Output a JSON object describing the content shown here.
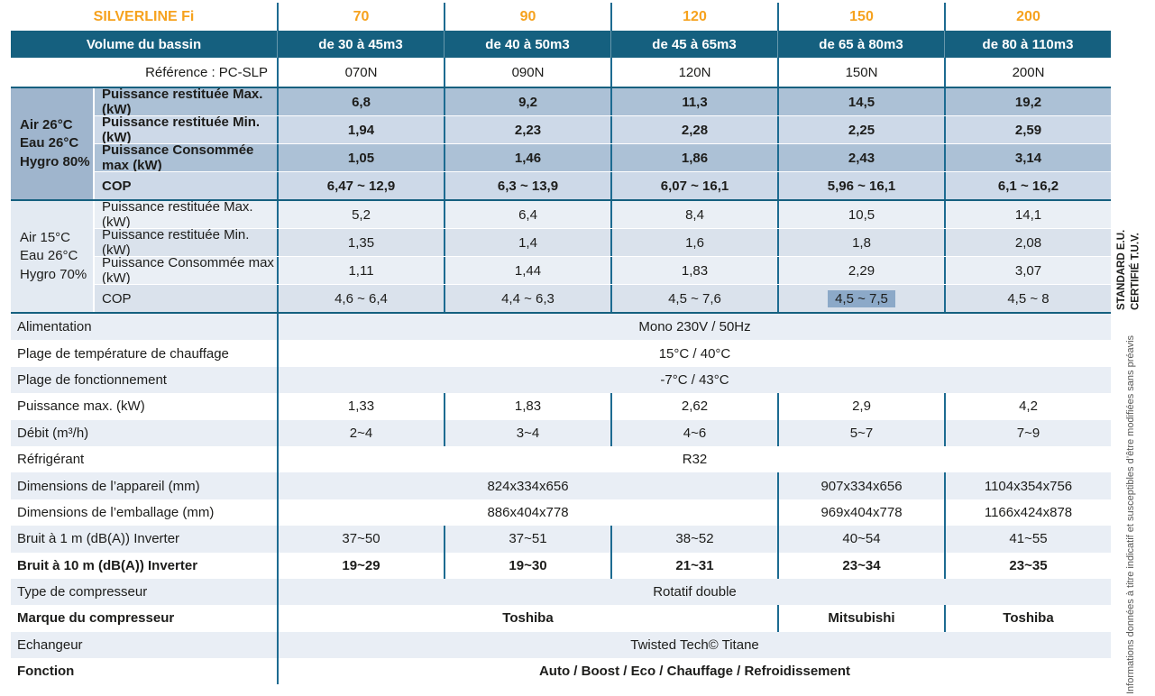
{
  "colors": {
    "band_blue": "#15607F",
    "accent_orange": "#F6A21E",
    "divider_teal": "#1d6b91",
    "air26_group_bg": "#9FB5CD",
    "air26_row_a": "#ACC1D6",
    "air26_row_b": "#CDD9E8",
    "air15_group_bg": "#E3EAF2",
    "air15_row_a": "#EAEFF5",
    "air15_row_b": "#DAE2EC",
    "zebra_blue": "#E9EEF5",
    "selection_highlight": "#8CA9C8"
  },
  "header": {
    "title": "SILVERLINE Fi",
    "models": [
      "70",
      "90",
      "120",
      "150",
      "200"
    ]
  },
  "volume_row": {
    "label": "Volume du bassin",
    "values": [
      "de 30 à 45m3",
      "de 40 à 50m3",
      "de 45 à 65m3",
      "de 65 à 80m3",
      "de 80 à 110m3"
    ]
  },
  "reference_row": {
    "label": "Référence : PC-SLP",
    "values": [
      "070N",
      "090N",
      "120N",
      "150N",
      "200N"
    ]
  },
  "performance_sections": [
    {
      "id": "air26",
      "condition_lines": [
        "Air 26°C",
        "Eau 26°C",
        "Hygro 80%"
      ],
      "rows": [
        {
          "label": "Puissance restituée Max. (kW)",
          "values": [
            "6,8",
            "9,2",
            "11,3",
            "14,5",
            "19,2"
          ]
        },
        {
          "label": "Puissance restituée Min. (kW)",
          "values": [
            "1,94",
            "2,23",
            "2,28",
            "2,25",
            "2,59"
          ]
        },
        {
          "label": "Puissance Consommée max (kW)",
          "values": [
            "1,05",
            "1,46",
            "1,86",
            "2,43",
            "3,14"
          ]
        },
        {
          "label": "COP",
          "values": [
            "6,47 ~ 12,9",
            "6,3 ~ 13,9",
            "6,07 ~ 16,1",
            "5,96 ~ 16,1",
            "6,1 ~ 16,2"
          ]
        }
      ]
    },
    {
      "id": "air15",
      "condition_lines": [
        "Air 15°C",
        "Eau 26°C",
        "Hygro 70%"
      ],
      "rows": [
        {
          "label": "Puissance restituée Max. (kW)",
          "values": [
            "5,2",
            "6,4",
            "8,4",
            "10,5",
            "14,1"
          ]
        },
        {
          "label": "Puissance restituée Min. (kW)",
          "values": [
            "1,35",
            "1,4",
            "1,6",
            "1,8",
            "2,08"
          ]
        },
        {
          "label": "Puissance Consommée max (kW)",
          "values": [
            "1,11",
            "1,44",
            "1,83",
            "2,29",
            "3,07"
          ]
        },
        {
          "label": "COP",
          "values": [
            "4,6 ~ 6,4",
            "4,4 ~ 6,3",
            "4,5 ~ 7,6",
            "4,5 ~ 7,5",
            "4,5 ~ 8"
          ],
          "highlight_index": 3
        }
      ]
    }
  ],
  "spec_rows": [
    {
      "label": "Alimentation",
      "type": "merged",
      "value": "Mono 230V / 50Hz"
    },
    {
      "label": "Plage de température de chauffage",
      "type": "merged",
      "value": "15°C / 40°C"
    },
    {
      "label": "Plage de fonctionnement",
      "type": "merged",
      "value": "-7°C / 43°C"
    },
    {
      "label": "Puissance max. (kW)",
      "type": "cells",
      "values": [
        "1,33",
        "1,83",
        "2,62",
        "2,9",
        "4,2"
      ]
    },
    {
      "label": "Débit (m³/h)",
      "type": "cells",
      "values": [
        "2~4",
        "3~4",
        "4~6",
        "5~7",
        "7~9"
      ]
    },
    {
      "label": "Réfrigérant",
      "type": "merged",
      "value": "R32"
    },
    {
      "label": "Dimensions de l’appareil (mm)",
      "type": "span3",
      "values": [
        "824x334x656",
        "907x334x656",
        "1104x354x756"
      ]
    },
    {
      "label": "Dimensions de l’emballage (mm)",
      "type": "span3",
      "values": [
        "886x404x778",
        "969x404x778",
        "1166x424x878"
      ]
    },
    {
      "label": "Bruit à 1 m (dB(A)) Inverter",
      "type": "cells",
      "values": [
        "37~50",
        "37~51",
        "38~52",
        "40~54",
        "41~55"
      ]
    },
    {
      "label": "Bruit à 10 m (dB(A)) Inverter",
      "type": "cells",
      "bold": true,
      "values": [
        "19~29",
        "19~30",
        "21~31",
        "23~34",
        "23~35"
      ]
    },
    {
      "label": "Type de compresseur",
      "type": "merged",
      "value": "Rotatif double"
    },
    {
      "label": "Marque du compresseur",
      "type": "span3",
      "bold": true,
      "values": [
        "Toshiba",
        "Mitsubishi",
        "Toshiba"
      ]
    },
    {
      "label": "Echangeur",
      "type": "merged",
      "value": "Twisted Tech© Titane"
    },
    {
      "label": "Fonction",
      "type": "merged",
      "bold": true,
      "value": "Auto / Boost / Eco / Chauffage / Refroidissement"
    }
  ],
  "side_notes": {
    "certification": "STANDARD E.U.\nCERTIFIÉ T.U.V.",
    "disclaimer": "Informations données à titre indicatif et susceptibles d’être modifiées sans préavis"
  }
}
